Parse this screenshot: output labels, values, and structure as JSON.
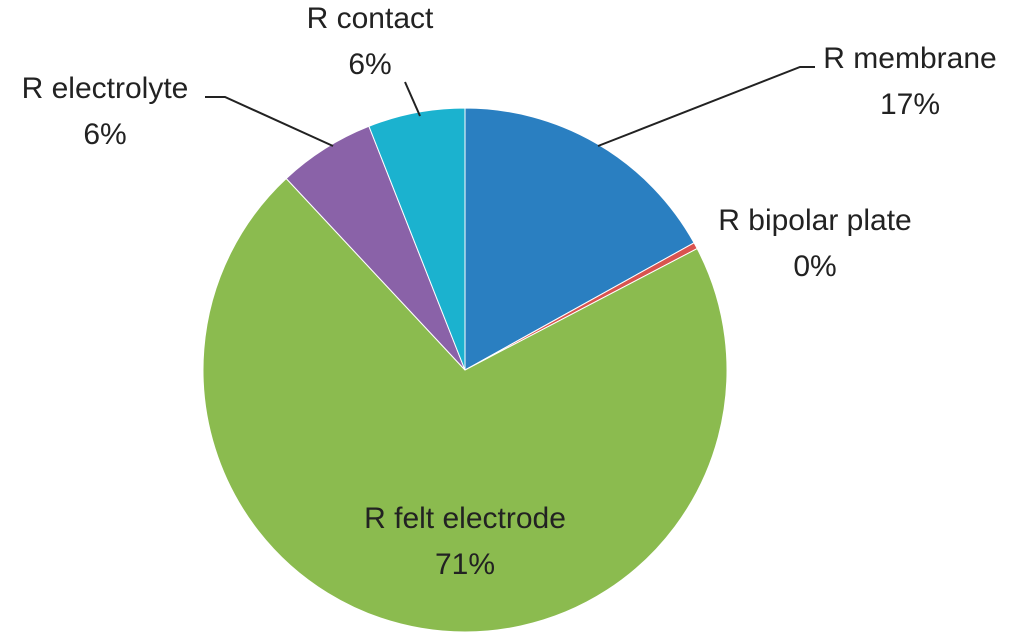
{
  "chart_data": {
    "type": "pie",
    "categories": [
      "R membrane",
      "R bipolar plate",
      "R felt electrode",
      "R electrolyte",
      "R contact"
    ],
    "values": [
      17,
      0.4,
      71,
      6,
      6
    ],
    "value_labels": [
      "17%",
      "0%",
      "71%",
      "6%",
      "6%"
    ],
    "colors": [
      "#2a7fc1",
      "#d9534f",
      "#8bbb4f",
      "#8a62a8",
      "#1bb2cf"
    ]
  }
}
